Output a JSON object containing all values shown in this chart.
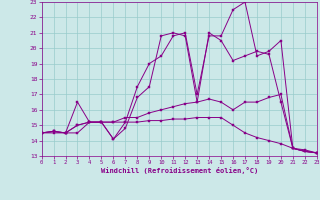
{
  "xlabel": "Windchill (Refroidissement éolien,°C)",
  "background_color": "#cce8e8",
  "line_color": "#880088",
  "grid_color": "#99cccc",
  "xlim": [
    0,
    23
  ],
  "ylim": [
    13,
    23
  ],
  "yticks": [
    13,
    14,
    15,
    16,
    17,
    18,
    19,
    20,
    21,
    22,
    23
  ],
  "xticks": [
    0,
    1,
    2,
    3,
    4,
    5,
    6,
    7,
    8,
    9,
    10,
    11,
    12,
    13,
    14,
    15,
    16,
    17,
    18,
    19,
    20,
    21,
    22,
    23
  ],
  "series": [
    {
      "x": [
        0,
        1,
        2,
        3,
        4,
        5,
        6,
        7,
        8,
        9,
        10,
        11,
        12,
        13,
        14,
        15,
        16,
        17,
        18,
        19,
        20,
        21,
        22,
        23
      ],
      "y": [
        14.5,
        14.6,
        14.5,
        16.5,
        15.2,
        15.2,
        14.1,
        15.2,
        17.5,
        19.0,
        19.5,
        20.8,
        21.0,
        17.0,
        20.8,
        20.8,
        22.5,
        23.0,
        19.5,
        19.8,
        20.5,
        13.5,
        13.3,
        13.2
      ]
    },
    {
      "x": [
        0,
        1,
        2,
        3,
        4,
        5,
        6,
        7,
        8,
        9,
        10,
        11,
        12,
        13,
        14,
        15,
        16,
        17,
        18,
        19,
        20,
        21,
        22,
        23
      ],
      "y": [
        14.5,
        14.6,
        14.5,
        15.0,
        15.2,
        15.2,
        14.1,
        14.8,
        16.8,
        17.5,
        20.8,
        21.0,
        20.8,
        16.5,
        21.0,
        20.5,
        19.2,
        19.5,
        19.8,
        19.6,
        16.5,
        13.5,
        13.3,
        13.2
      ]
    },
    {
      "x": [
        0,
        1,
        2,
        3,
        4,
        5,
        6,
        7,
        8,
        9,
        10,
        11,
        12,
        13,
        14,
        15,
        16,
        17,
        18,
        19,
        20,
        21,
        22,
        23
      ],
      "y": [
        14.5,
        14.6,
        14.5,
        15.0,
        15.2,
        15.2,
        15.2,
        15.5,
        15.5,
        15.8,
        16.0,
        16.2,
        16.4,
        16.5,
        16.7,
        16.5,
        16.0,
        16.5,
        16.5,
        16.8,
        17.0,
        13.5,
        13.3,
        13.2
      ]
    },
    {
      "x": [
        0,
        1,
        2,
        3,
        4,
        5,
        6,
        7,
        8,
        9,
        10,
        11,
        12,
        13,
        14,
        15,
        16,
        17,
        18,
        19,
        20,
        21,
        22,
        23
      ],
      "y": [
        14.5,
        14.5,
        14.5,
        14.5,
        15.2,
        15.2,
        15.2,
        15.2,
        15.2,
        15.3,
        15.3,
        15.4,
        15.4,
        15.5,
        15.5,
        15.5,
        15.0,
        14.5,
        14.2,
        14.0,
        13.8,
        13.5,
        13.4,
        13.2
      ]
    }
  ]
}
